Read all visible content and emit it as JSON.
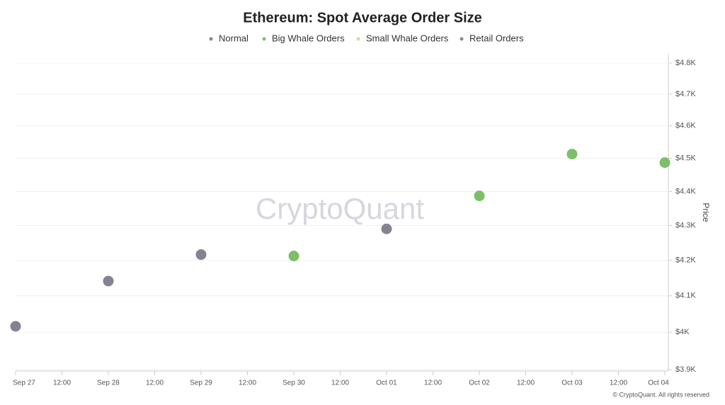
{
  "chart_data": {
    "type": "scatter",
    "title": "Ethereum: Spot Average Order Size",
    "y_label": "Price",
    "watermark": "CryptoQuant",
    "footer": "© CryptoQuant. All rights reserved",
    "log_y": true,
    "grid": true,
    "xlim": [
      0,
      7
    ],
    "xticks": [
      {
        "value": 0,
        "label": "Sep 27"
      },
      {
        "value": 0.5,
        "label": "12:00"
      },
      {
        "value": 1,
        "label": "Sep 28"
      },
      {
        "value": 1.5,
        "label": "12:00"
      },
      {
        "value": 2,
        "label": "Sep 29"
      },
      {
        "value": 2.5,
        "label": "12:00"
      },
      {
        "value": 3,
        "label": "Sep 30"
      },
      {
        "value": 3.5,
        "label": "12:00"
      },
      {
        "value": 4,
        "label": "Oct 01"
      },
      {
        "value": 4.5,
        "label": "12:00"
      },
      {
        "value": 5,
        "label": "Oct 02"
      },
      {
        "value": 5.5,
        "label": "12:00"
      },
      {
        "value": 6,
        "label": "Oct 03"
      },
      {
        "value": 6.5,
        "label": "12:00"
      },
      {
        "value": 7,
        "label": "Oct 04"
      }
    ],
    "ylim": [
      3900,
      4800
    ],
    "yticks": [
      {
        "value": 3900,
        "label": "$3.9K"
      },
      {
        "value": 4000,
        "label": "$4K"
      },
      {
        "value": 4100,
        "label": "$4.1K"
      },
      {
        "value": 4200,
        "label": "$4.2K"
      },
      {
        "value": 4300,
        "label": "$4.3K"
      },
      {
        "value": 4400,
        "label": "$4.4K"
      },
      {
        "value": 4500,
        "label": "$4.5K"
      },
      {
        "value": 4600,
        "label": "$4.6K"
      },
      {
        "value": 4700,
        "label": "$4.7K"
      },
      {
        "value": 4800,
        "label": "$4.8K"
      }
    ],
    "series": [
      {
        "name": "Normal",
        "color": "#858391",
        "x": [
          0,
          1,
          2,
          4
        ],
        "values": [
          4016,
          4141,
          4216,
          4290
        ]
      },
      {
        "name": "Big Whale Orders",
        "color": "#7cbf68",
        "x": [
          3,
          5,
          6,
          7
        ],
        "values": [
          4212,
          4387,
          4513,
          4487
        ]
      },
      {
        "name": "Small Whale Orders",
        "color": "#c9dea0",
        "x": [],
        "values": []
      },
      {
        "name": "Retail Orders",
        "color": "#8a8896",
        "x": [],
        "values": []
      }
    ]
  }
}
